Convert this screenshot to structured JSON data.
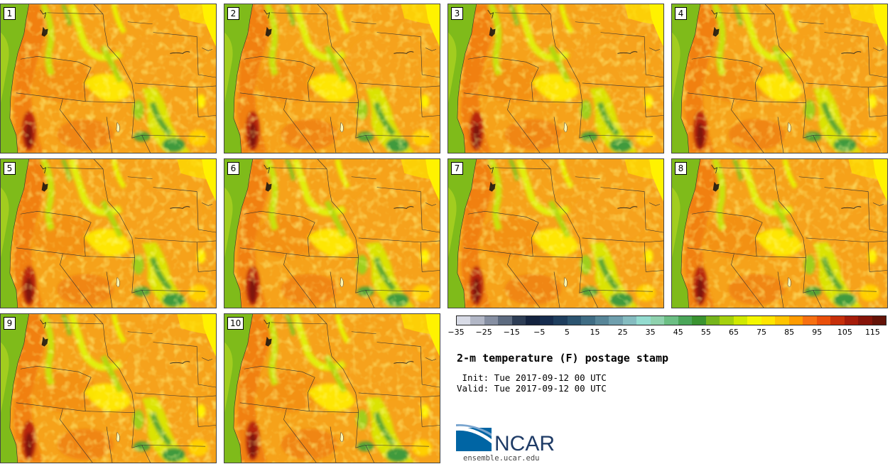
{
  "panels": [
    {
      "label": "1"
    },
    {
      "label": "2"
    },
    {
      "label": "3"
    },
    {
      "label": "4"
    },
    {
      "label": "5"
    },
    {
      "label": "6"
    },
    {
      "label": "7"
    },
    {
      "label": "8"
    },
    {
      "label": "9"
    },
    {
      "label": "10"
    }
  ],
  "map": {
    "land_base_color": "#f6a21a",
    "ocean_color": "#8fc01e",
    "state_line_color": "#333333"
  },
  "colorbar": {
    "colors": [
      "#d8dbe6",
      "#b2b7c6",
      "#868fa2",
      "#5d6b80",
      "#2d3d55",
      "#14233f",
      "#162c4e",
      "#1f3e5e",
      "#2c5470",
      "#3f6c84",
      "#578598",
      "#6f9fad",
      "#85bcc0",
      "#94dcd0",
      "#8fd2ae",
      "#6cbf84",
      "#4ba659",
      "#3a9330",
      "#76b51c",
      "#a5d10d",
      "#d0e900",
      "#f4f700",
      "#ffe500",
      "#ffc400",
      "#ff9c00",
      "#f77011",
      "#ea4f0a",
      "#c72f0a",
      "#a61c0a",
      "#861409",
      "#641308"
    ],
    "tick_labels": [
      "−35",
      "−25",
      "−15",
      "−5",
      "5",
      "15",
      "25",
      "35",
      "45",
      "55",
      "65",
      "75",
      "85",
      "95",
      "105",
      "115"
    ],
    "tick_values": [
      -35,
      -25,
      -15,
      -5,
      5,
      15,
      25,
      35,
      45,
      55,
      65,
      75,
      85,
      95,
      105,
      115
    ],
    "min": -35,
    "max": 120
  },
  "info": {
    "title": "2-m temperature (F) postage stamp",
    "init": " Init: Tue 2017-09-12 00 UTC",
    "valid": "Valid: Tue 2017-09-12 00 UTC"
  },
  "logo": {
    "text": "NCAR",
    "url": "ensemble.ucar.edu",
    "blue": "#0065a4",
    "navy": "#1e3b66"
  }
}
